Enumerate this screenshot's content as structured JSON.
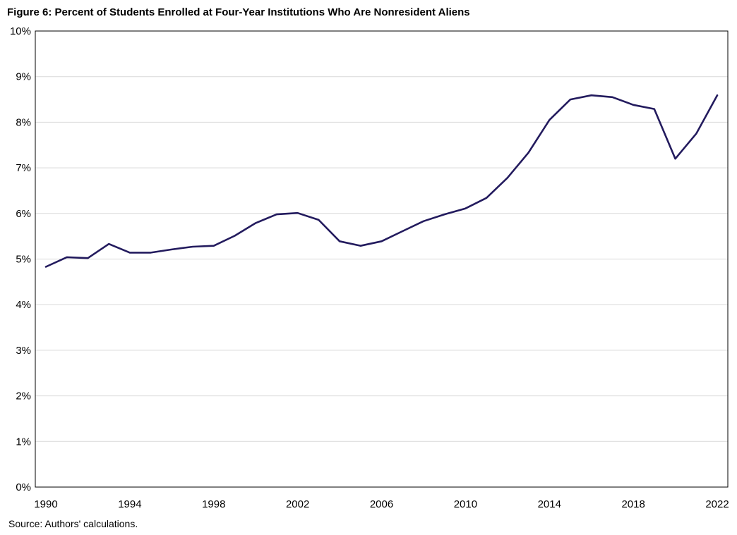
{
  "title": "Figure 6: Percent of Students Enrolled at Four-Year Institutions Who Are Nonresident Aliens",
  "source": "Source: Authors' calculations.",
  "colors": {
    "line": "#231b5e",
    "grid": "#d9d9d9",
    "frame": "#000000"
  },
  "chart_data": {
    "type": "line",
    "title": "Figure 6: Percent of Students Enrolled at Four-Year Institutions Who Are Nonresident Aliens",
    "xlabel": "",
    "ylabel": "",
    "x": [
      1990,
      1991,
      1992,
      1993,
      1994,
      1995,
      1996,
      1997,
      1998,
      1999,
      2000,
      2001,
      2002,
      2003,
      2004,
      2005,
      2006,
      2007,
      2008,
      2009,
      2010,
      2011,
      2012,
      2013,
      2014,
      2015,
      2016,
      2017,
      2018,
      2019,
      2020,
      2021,
      2022
    ],
    "series": [
      {
        "values": [
          4.83,
          5.04,
          5.02,
          5.33,
          5.14,
          5.14,
          5.21,
          5.27,
          5.29,
          5.51,
          5.79,
          5.98,
          6.01,
          5.86,
          5.39,
          5.29,
          5.39,
          5.61,
          5.83,
          5.98,
          6.11,
          6.34,
          6.78,
          7.33,
          8.05,
          8.5,
          8.59,
          8.55,
          8.38,
          8.29,
          7.2,
          7.75,
          8.59
        ]
      }
    ],
    "xlim": [
      1990,
      2022
    ],
    "ylim": [
      0,
      10
    ],
    "x_ticks": [
      "1990",
      "1994",
      "1998",
      "2002",
      "2006",
      "2010",
      "2014",
      "2018",
      "2022"
    ],
    "y_ticks": [
      "0%",
      "1%",
      "2%",
      "3%",
      "4%",
      "5%",
      "6%",
      "7%",
      "8%",
      "9%",
      "10%"
    ],
    "grid": true,
    "legend": "none"
  }
}
